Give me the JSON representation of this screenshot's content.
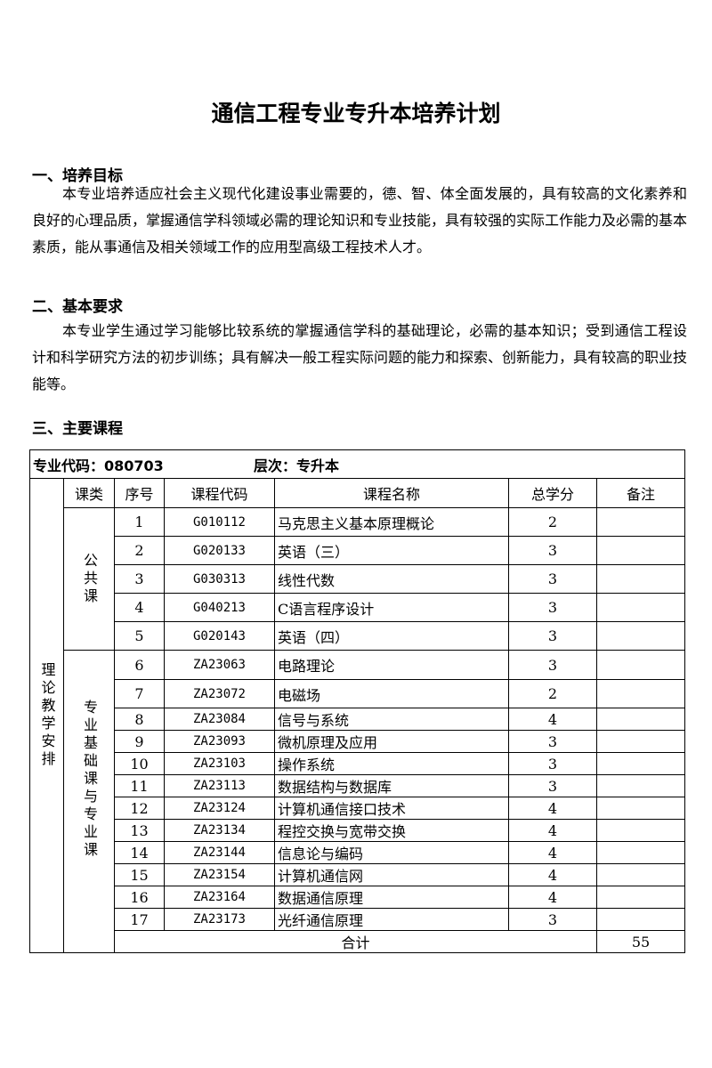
{
  "title": "通信工程专业专升本培养计划",
  "sections": [
    {
      "heading": "一、培养目标",
      "text": "本专业培养适应社会主义现代化建设事业需要的，德、智、体全面发展的，具有较高的文化素养和良好的心理品质，掌握通信学科领域必需的理论知识和专业技能，具有较强的实际工作能力及必需的基本素质，能从事通信及相关领域工作的应用型高级工程技术人才。"
    },
    {
      "heading": "二、基本要求",
      "text": "本专业学生通过学习能够比较系统的掌握通信学科的基础理论，必需的基本知识；受到通信工程设计和科学研究方法的初步训练；具有解决一般工程实际问题的能力和探索、创新能力，具有较高的职业技能等。"
    },
    {
      "heading": "三、主要课程"
    }
  ],
  "table": {
    "major_code": "专业代码：080703",
    "level": "层次：专升本",
    "headers": [
      "课类",
      "序号",
      "课程代码",
      "课程名称",
      "总学分",
      "备注"
    ],
    "outer_category": "理论教学安排",
    "groups": [
      "公共课",
      "专业基础课与专业课"
    ],
    "rows": [
      {
        "no": "1",
        "code": "G010112",
        "name": "马克思主义基本原理概论",
        "credits": "2"
      },
      {
        "no": "2",
        "code": "G020133",
        "name": "英语（三）",
        "credits": "3"
      },
      {
        "no": "3",
        "code": "G030313",
        "name": "线性代数",
        "credits": "3"
      },
      {
        "no": "4",
        "code": "G040213",
        "name": "C语言程序设计",
        "credits": "3"
      },
      {
        "no": "5",
        "code": "G020143",
        "name": "英语（四）",
        "credits": "3"
      },
      {
        "no": "6",
        "code": "ZA23063",
        "name": "电路理论",
        "credits": "3"
      },
      {
        "no": "7",
        "code": "ZA23072",
        "name": "电磁场",
        "credits": "2"
      },
      {
        "no": "8",
        "code": "ZA23084",
        "name": "信号与系统",
        "credits": "4"
      },
      {
        "no": "9",
        "code": "ZA23093",
        "name": "微机原理及应用",
        "credits": "3"
      },
      {
        "no": "10",
        "code": "ZA23103",
        "name": "操作系统",
        "credits": "3"
      },
      {
        "no": "11",
        "code": "ZA23113",
        "name": "数据结构与数据库",
        "credits": "3"
      },
      {
        "no": "12",
        "code": "ZA23124",
        "name": "计算机通信接口技术",
        "credits": "4"
      },
      {
        "no": "13",
        "code": "ZA23134",
        "name": "程控交换与宽带交换",
        "credits": "4"
      },
      {
        "no": "14",
        "code": "ZA23144",
        "name": "信息论与编码",
        "credits": "4"
      },
      {
        "no": "15",
        "code": "ZA23154",
        "name": "计算机通信网",
        "credits": "4"
      },
      {
        "no": "16",
        "code": "ZA23164",
        "name": "数据通信原理",
        "credits": "4"
      },
      {
        "no": "17",
        "code": "ZA23173",
        "name": "光纤通信原理",
        "credits": "3"
      }
    ],
    "total_label": "合计",
    "total_credits": "55"
  }
}
